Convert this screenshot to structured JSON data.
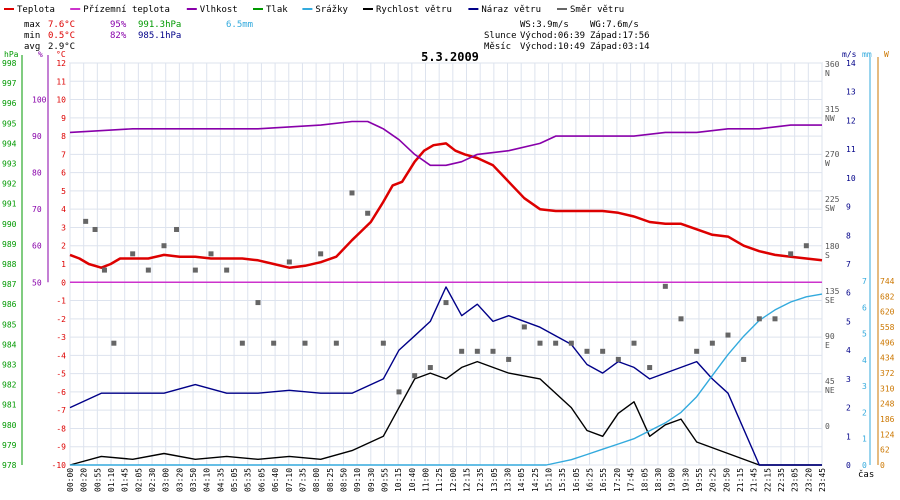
{
  "colors": {
    "teplota": "#dd0000",
    "prizemni": "#cc33cc",
    "vlhkost": "#8800aa",
    "tlak": "#009900",
    "srazky": "#33aadd",
    "rychlost": "#000000",
    "naraz": "#000088",
    "smer": "#666666",
    "grid": "#dde3ee",
    "zero": "#cc33cc"
  },
  "legend": [
    {
      "key": "teplota",
      "label": "Teplota"
    },
    {
      "key": "prizemni",
      "label": "Přízemní teplota"
    },
    {
      "key": "vlhkost",
      "label": "Vlhkost"
    },
    {
      "key": "tlak",
      "label": "Tlak"
    },
    {
      "key": "srazky",
      "label": "Srážky"
    },
    {
      "key": "rychlost",
      "label": "Rychlost větru"
    },
    {
      "key": "naraz",
      "label": "Náraz větru"
    },
    {
      "key": "smer",
      "label": "Směr větru"
    }
  ],
  "stats": {
    "max_label": "max",
    "max_temp": "7.6°C",
    "max_hum": "95%",
    "max_press": "991.3hPa",
    "rain": "6.5mm",
    "min_label": "min",
    "min_temp": "0.5°C",
    "min_hum": "82%",
    "min_press": "985.1hPa",
    "avg_label": "avg",
    "avg_temp": "2.9°C"
  },
  "info": {
    "ws": "WS:3.9m/s",
    "wg": "WG:7.6m/s",
    "slunce": "Slunce",
    "slunce_vychod": "Východ:06:39",
    "slunce_zapad": "Západ:17:56",
    "mesic": "Měsíc",
    "mesic_vychod": "Východ:10:49",
    "mesic_zapad": "Západ:03:14"
  },
  "chart_data": {
    "type": "line",
    "title": "5.3.2009",
    "xlabel": "čas",
    "x_ticks": [
      "00:00",
      "00:20",
      "00:55",
      "01:10",
      "01:45",
      "02:05",
      "02:30",
      "03:00",
      "03:20",
      "03:50",
      "04:10",
      "04:35",
      "05:05",
      "05:35",
      "06:05",
      "06:40",
      "07:10",
      "07:35",
      "08:00",
      "08:25",
      "08:50",
      "09:10",
      "09:30",
      "09:55",
      "10:15",
      "10:40",
      "11:00",
      "11:25",
      "12:00",
      "12:15",
      "12:35",
      "13:05",
      "13:30",
      "14:05",
      "14:25",
      "15:10",
      "15:35",
      "16:05",
      "16:25",
      "16:55",
      "17:20",
      "17:45",
      "18:05",
      "18:30",
      "19:00",
      "19:30",
      "19:55",
      "20:25",
      "20:50",
      "21:15",
      "21:45",
      "22:15",
      "22:35",
      "23:05",
      "23:20",
      "23:45"
    ],
    "axes": {
      "hpa": {
        "label": "hPa",
        "ticks": [
          998,
          997,
          996,
          995,
          994,
          993,
          992,
          991,
          990,
          989,
          988,
          987,
          986,
          985,
          984,
          983,
          982,
          981,
          980,
          979,
          978
        ]
      },
      "pct": {
        "label": "%",
        "ticks": [
          100,
          90,
          80,
          70,
          60,
          50
        ]
      },
      "temp": {
        "label": "°C",
        "ticks": [
          12,
          11,
          10,
          9,
          8,
          7,
          6,
          5,
          4,
          3,
          2,
          1,
          0,
          -1,
          -2,
          -3,
          -4,
          -5,
          -6,
          -7,
          -8,
          -9,
          -10
        ],
        "ylim": [
          -10,
          12
        ]
      },
      "dir": {
        "ticks": [
          {
            "v": "360",
            "d": "N"
          },
          {
            "v": "315",
            "d": "NW"
          },
          {
            "v": "270",
            "d": "W"
          },
          {
            "v": "225",
            "d": "SW"
          },
          {
            "v": "180",
            "d": "S"
          },
          {
            "v": "135",
            "d": "SE"
          },
          {
            "v": "90",
            "d": "E"
          },
          {
            "v": "45",
            "d": "NE"
          },
          {
            "v": "0",
            "d": ""
          }
        ]
      },
      "ms": {
        "label": "m/s",
        "ticks": [
          14,
          13,
          12,
          11,
          10,
          9,
          8,
          7,
          6,
          5,
          4,
          3,
          2,
          1,
          0
        ],
        "ylim": [
          0,
          14
        ]
      },
      "mm": {
        "label": "mm",
        "ticks": [
          7,
          6,
          5,
          4,
          3,
          2,
          1,
          0
        ],
        "ylim": [
          0,
          7
        ]
      },
      "w": {
        "label": "W",
        "ticks": [
          744,
          682,
          620,
          558,
          496,
          434,
          372,
          310,
          248,
          186,
          124,
          62,
          0
        ],
        "ylim": [
          0,
          744
        ]
      }
    },
    "series": [
      {
        "name": "Teplota",
        "key": "teplota",
        "x": [
          0,
          0.3,
          0.6,
          1.0,
          1.3,
          1.6,
          2.0,
          2.5,
          3.0,
          3.5,
          4.0,
          4.5,
          5.0,
          5.5,
          6.0,
          6.5,
          7.0,
          7.5,
          8.0,
          8.5,
          9.0,
          9.3,
          9.6,
          10.0,
          10.3,
          10.6,
          11.0,
          11.3,
          11.6,
          12.0,
          12.3,
          12.6,
          13.0,
          13.5,
          14.0,
          14.5,
          15.0,
          15.5,
          16.0,
          16.5,
          17.0,
          17.5,
          18.0,
          18.5,
          19.0,
          19.5,
          20.0,
          20.5,
          21.0,
          21.5,
          22.0,
          22.5,
          23.0,
          23.5,
          24.0
        ],
        "values": [
          1.5,
          1.3,
          1.0,
          0.8,
          1.0,
          1.3,
          1.3,
          1.3,
          1.5,
          1.4,
          1.4,
          1.3,
          1.3,
          1.3,
          1.2,
          1.0,
          0.8,
          0.9,
          1.1,
          1.4,
          2.3,
          2.8,
          3.3,
          4.4,
          5.3,
          5.5,
          6.6,
          7.2,
          7.5,
          7.6,
          7.2,
          7.0,
          6.8,
          6.4,
          5.5,
          4.6,
          4.0,
          3.9,
          3.9,
          3.9,
          3.9,
          3.8,
          3.6,
          3.3,
          3.2,
          3.2,
          2.9,
          2.6,
          2.5,
          2.0,
          1.7,
          1.5,
          1.4,
          1.3,
          1.2
        ]
      },
      {
        "name": "Vlhkost",
        "key": "vlhkost",
        "x": [
          0,
          2,
          4,
          6,
          8,
          9,
          9.5,
          10,
          10.5,
          11,
          11.5,
          12,
          12.5,
          13,
          14,
          15,
          15.5,
          16,
          17,
          18,
          19,
          20,
          21,
          22,
          23,
          24
        ],
        "values": [
          91,
          92,
          92,
          92,
          93,
          94,
          94,
          92,
          89,
          85,
          82,
          82,
          83,
          85,
          86,
          88,
          90,
          90,
          90,
          90,
          91,
          91,
          92,
          92,
          93,
          93
        ]
      },
      {
        "name": "Rychlost větru",
        "key": "rychlost",
        "x": [
          0,
          1,
          2,
          3,
          4,
          5,
          6,
          7,
          8,
          9,
          10,
          10.5,
          11,
          11.5,
          12,
          12.5,
          13,
          14,
          15,
          16,
          16.5,
          17,
          17.5,
          18,
          18.5,
          19,
          19.5,
          20,
          21,
          22,
          23,
          24
        ],
        "values": [
          0,
          0.3,
          0.2,
          0.4,
          0.2,
          0.3,
          0.2,
          0.3,
          0.2,
          0.5,
          1.0,
          2.0,
          3.0,
          3.2,
          3.0,
          3.4,
          3.6,
          3.2,
          3.0,
          2.0,
          1.2,
          1.0,
          1.8,
          2.2,
          1.0,
          1.4,
          1.6,
          0.8,
          0.4,
          0,
          0,
          0
        ]
      },
      {
        "name": "Náraz větru",
        "key": "naraz",
        "x": [
          0,
          1,
          2,
          3,
          4,
          5,
          6,
          7,
          8,
          9,
          10,
          10.5,
          11,
          11.5,
          12,
          12.5,
          13,
          13.5,
          14,
          15,
          16,
          16.5,
          17,
          17.5,
          18,
          18.5,
          19,
          19.5,
          20,
          20.5,
          21,
          22,
          23,
          24
        ],
        "values": [
          2.0,
          2.5,
          2.5,
          2.5,
          2.8,
          2.5,
          2.5,
          2.6,
          2.5,
          2.5,
          3.0,
          4.0,
          4.5,
          5.0,
          6.2,
          5.2,
          5.6,
          5.0,
          5.2,
          4.8,
          4.2,
          3.5,
          3.2,
          3.6,
          3.4,
          3.0,
          3.2,
          3.4,
          3.6,
          3.0,
          2.5,
          0,
          0,
          0
        ]
      },
      {
        "name": "Srážky",
        "key": "srazky",
        "x": [
          0,
          15.2,
          16,
          16.5,
          17,
          17.5,
          18,
          18.5,
          19,
          19.5,
          20,
          20.5,
          21,
          21.5,
          22,
          22.5,
          23,
          23.5,
          24
        ],
        "values": [
          0,
          0,
          0.2,
          0.4,
          0.6,
          0.8,
          1.0,
          1.3,
          1.6,
          2.0,
          2.6,
          3.4,
          4.2,
          4.9,
          5.5,
          5.9,
          6.2,
          6.4,
          6.5
        ]
      },
      {
        "name": "Směr větru",
        "key": "smer",
        "x": [
          0.5,
          0.8,
          1.1,
          1.4,
          2.0,
          2.5,
          3.0,
          3.4,
          4.0,
          4.5,
          5.0,
          5.5,
          6.0,
          6.5,
          7.0,
          7.5,
          8.0,
          8.5,
          9.0,
          9.5,
          10.0,
          10.5,
          11.0,
          11.5,
          12.0,
          12.5,
          13.0,
          13.5,
          14.0,
          14.5,
          15.0,
          15.5,
          16.0,
          16.5,
          17.0,
          17.5,
          18.0,
          18.5,
          19.0,
          19.5,
          20.0,
          20.5,
          21.0,
          21.5,
          22.0,
          22.5,
          23.0,
          23.5
        ],
        "values": [
          300,
          290,
          240,
          150,
          260,
          240,
          270,
          290,
          240,
          260,
          240,
          150,
          200,
          150,
          250,
          150,
          260,
          150,
          335,
          310,
          150,
          90,
          110,
          120,
          200,
          140,
          140,
          140,
          130,
          170,
          150,
          150,
          150,
          140,
          140,
          130,
          150,
          120,
          220,
          180,
          140,
          150,
          160,
          130,
          180,
          180,
          260,
          270
        ]
      }
    ]
  }
}
